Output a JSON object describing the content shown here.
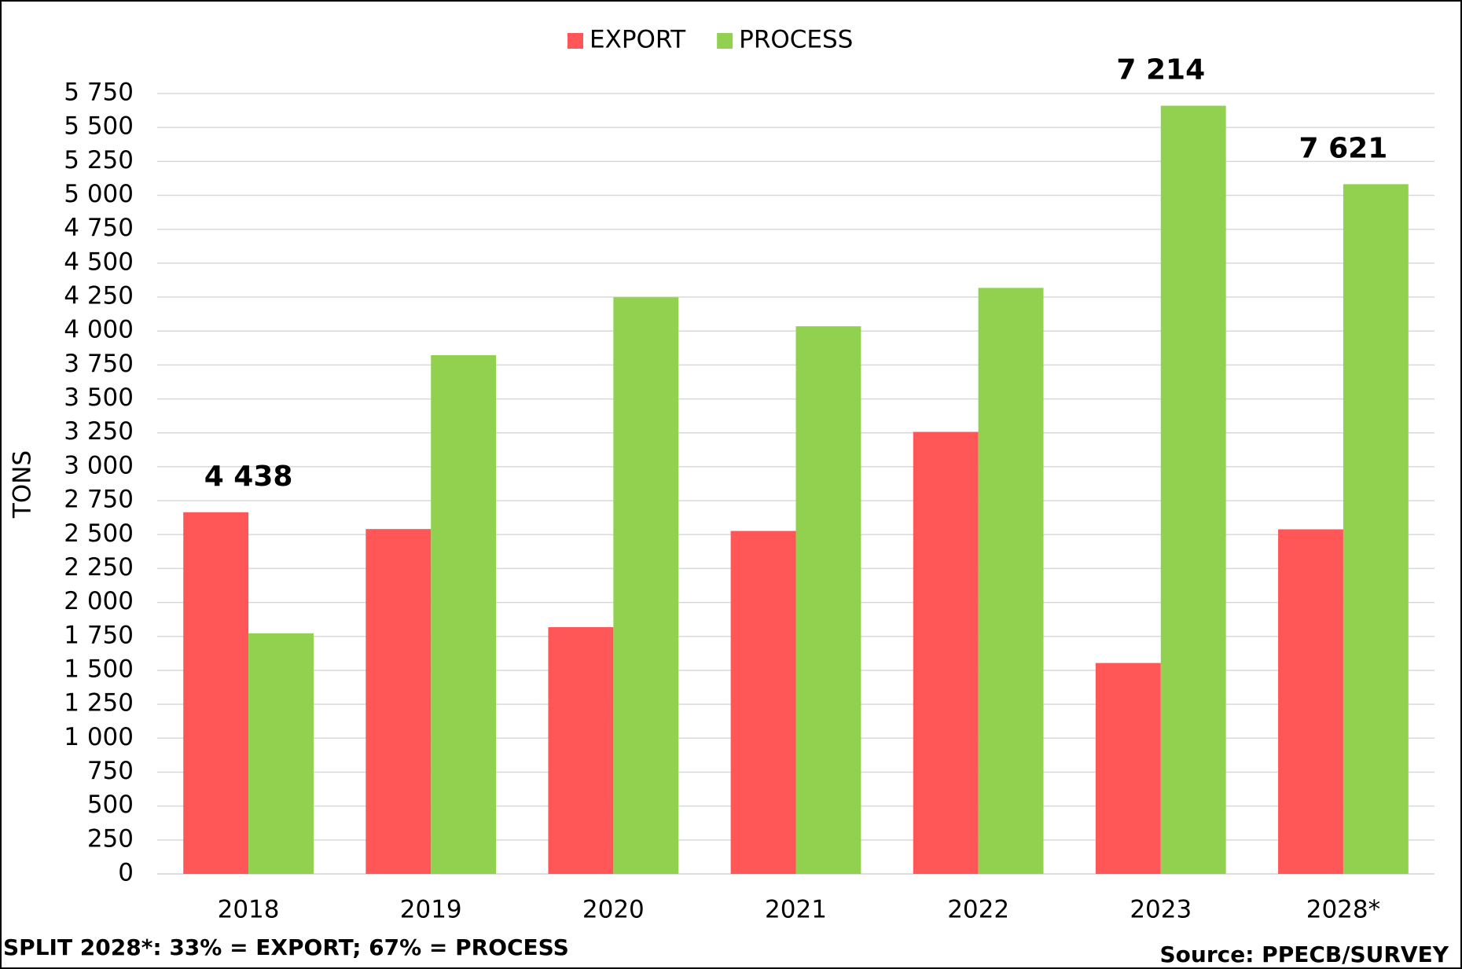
{
  "chart_data": {
    "type": "bar",
    "y_label": "TONS",
    "categories": [
      "2018",
      "2019",
      "2020",
      "2021",
      "2022",
      "2023",
      "2028*"
    ],
    "series": [
      {
        "name": "EXPORT",
        "color": "#ff5757",
        "values": [
          2665,
          2541,
          1818,
          2527,
          3257,
          1554,
          2539
        ]
      },
      {
        "name": "PROCESS",
        "color": "#92d050",
        "values": [
          1773,
          3822,
          4249,
          4035,
          4318,
          5660,
          5082
        ]
      }
    ],
    "total_labels": [
      {
        "category": "2018",
        "value": 4438,
        "label": "4 438"
      },
      {
        "category": "2023",
        "value": 7214,
        "label": "7 214"
      },
      {
        "category": "2028*",
        "value": 7621,
        "label": "7 621"
      }
    ],
    "ylim": [
      0,
      5750
    ],
    "yticks": [
      0,
      250,
      500,
      750,
      {
        "value": 1000,
        "label": "1 000"
      },
      {
        "value": 1250,
        "label": "1 250"
      },
      {
        "value": 1500,
        "label": "1 500"
      },
      {
        "value": 1750,
        "label": "1 750"
      },
      {
        "value": 2000,
        "label": "2 000"
      },
      {
        "value": 2250,
        "label": "2 250"
      },
      {
        "value": 2500,
        "label": "2 500"
      },
      {
        "value": 2750,
        "label": "2 750"
      },
      {
        "value": 3000,
        "label": "3 000"
      },
      {
        "value": 3250,
        "label": "3 250"
      },
      {
        "value": 3500,
        "label": "3 500"
      },
      {
        "value": 3750,
        "label": "3 750"
      },
      {
        "value": 4000,
        "label": "4 000"
      },
      {
        "value": 4250,
        "label": "4 250"
      },
      {
        "value": 4500,
        "label": "4 500"
      },
      {
        "value": 4750,
        "label": "4 750"
      },
      {
        "value": 5000,
        "label": "5 000"
      },
      {
        "value": 5250,
        "label": "5 250"
      },
      {
        "value": 5500,
        "label": "5 500"
      },
      {
        "value": 5750,
        "label": "5 750"
      }
    ],
    "grid": true,
    "legend": "top",
    "footnote": "SPLIT 2028*: 33% = EXPORT; 67% = PROCESS",
    "source": "Source: PPECB/SURVEY"
  }
}
